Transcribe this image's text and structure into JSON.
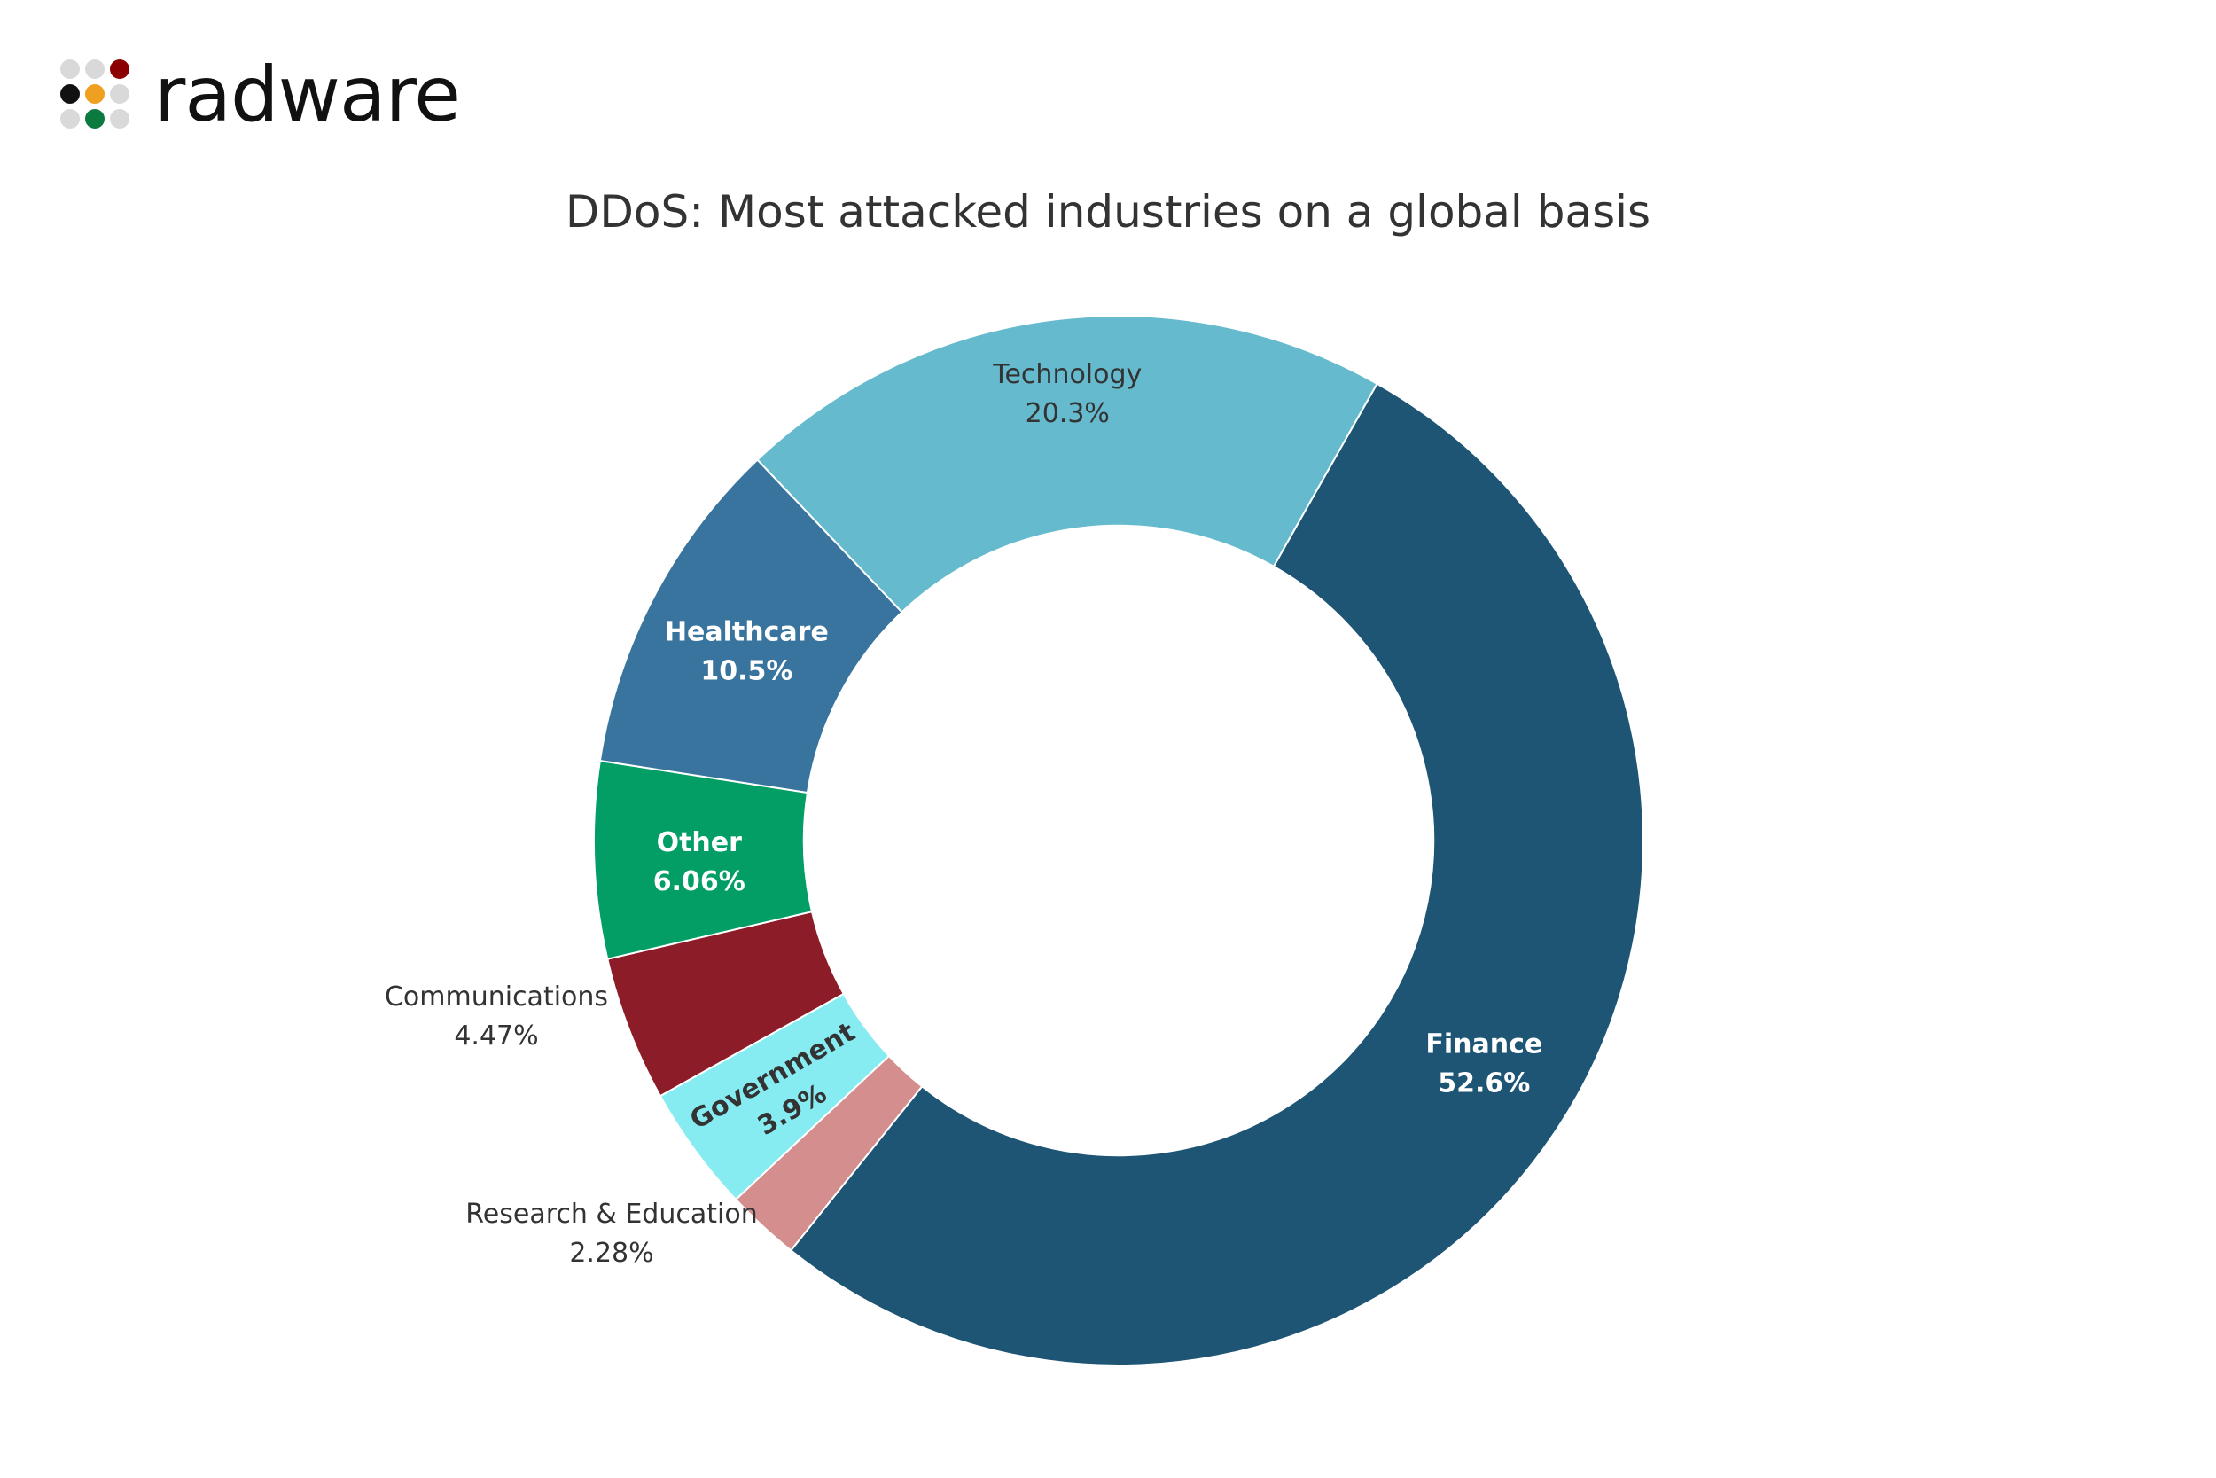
{
  "logo": {
    "text": "radware"
  },
  "colors": {
    "logo_dots": [
      "#d9d9d9",
      "#d9d9d9",
      "#8b0000",
      "#111111",
      "#f0a020",
      "#d9d9d9",
      "#d9d9d9",
      "#0b7a3e",
      "#d9d9d9"
    ]
  },
  "chart_data": {
    "type": "pie",
    "title": "DDoS: Most attacked industries on a global basis",
    "hole": 0.6,
    "slices": [
      {
        "label": "Finance",
        "value": 52.6,
        "display": "52.6%",
        "color": "#1e5574",
        "label_color": "#ffffff",
        "label_pos": "inside"
      },
      {
        "label": "Research & Education",
        "value": 2.28,
        "display": "2.28%",
        "color": "#d48e8e",
        "label_color": "#333333",
        "label_pos": "outside"
      },
      {
        "label": "Government",
        "value": 3.9,
        "display": "3.9%",
        "color": "#87ecf2",
        "label_color": "#333333",
        "label_pos": "inside"
      },
      {
        "label": "Communications",
        "value": 4.47,
        "display": "4.47%",
        "color": "#8b1c28",
        "label_color": "#333333",
        "label_pos": "outside"
      },
      {
        "label": "Other",
        "value": 6.06,
        "display": "6.06%",
        "color": "#029e65",
        "label_color": "#ffffff",
        "label_pos": "inside"
      },
      {
        "label": "Healthcare",
        "value": 10.5,
        "display": "10.5%",
        "color": "#38749e",
        "label_color": "#ffffff",
        "label_pos": "inside"
      },
      {
        "label": "Technology",
        "value": 20.3,
        "display": "20.3%",
        "color": "#66bace",
        "label_color": "#333333",
        "label_pos": "inside"
      }
    ]
  }
}
